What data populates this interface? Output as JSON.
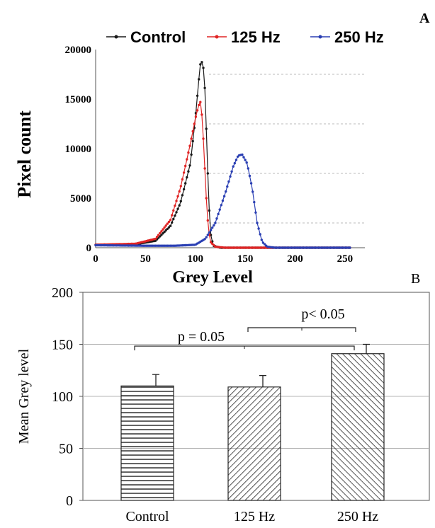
{
  "chart_data": [
    {
      "panel": "A",
      "type": "line",
      "xlabel": "Grey Level",
      "ylabel": "Pixel count",
      "xlim": [
        0,
        270
      ],
      "ylim": [
        0,
        20000
      ],
      "x_ticks": [
        0,
        50,
        100,
        150,
        200,
        250
      ],
      "y_ticks": [
        0,
        5000,
        10000,
        15000,
        20000
      ],
      "legend_position": "top",
      "grid": "dashed horizontal",
      "series": [
        {
          "name": "Control",
          "color": "#1a1a1a",
          "points": [
            [
              0,
              300
            ],
            [
              40,
              350
            ],
            [
              60,
              700
            ],
            [
              75,
              2200
            ],
            [
              85,
              4500
            ],
            [
              95,
              8500
            ],
            [
              100,
              13000
            ],
            [
              103,
              16500
            ],
            [
              105,
              18500
            ],
            [
              107,
              18800
            ],
            [
              109,
              17500
            ],
            [
              111,
              12000
            ],
            [
              113,
              6000
            ],
            [
              115,
              1500
            ],
            [
              118,
              200
            ],
            [
              125,
              0
            ],
            [
              255,
              0
            ]
          ]
        },
        {
          "name": "125 Hz",
          "color": "#e02424",
          "points": [
            [
              0,
              300
            ],
            [
              40,
              400
            ],
            [
              60,
              900
            ],
            [
              75,
              2800
            ],
            [
              85,
              6000
            ],
            [
              95,
              10500
            ],
            [
              100,
              13000
            ],
            [
              103,
              14300
            ],
            [
              105,
              14700
            ],
            [
              107,
              13000
            ],
            [
              109,
              9000
            ],
            [
              111,
              5000
            ],
            [
              113,
              2000
            ],
            [
              115,
              600
            ],
            [
              120,
              100
            ],
            [
              130,
              0
            ],
            [
              255,
              0
            ]
          ]
        },
        {
          "name": "250 Hz",
          "color": "#2a3fb3",
          "points": [
            [
              0,
              250
            ],
            [
              50,
              200
            ],
            [
              80,
              200
            ],
            [
              100,
              300
            ],
            [
              110,
              900
            ],
            [
              120,
              2500
            ],
            [
              130,
              5500
            ],
            [
              138,
              8200
            ],
            [
              143,
              9300
            ],
            [
              147,
              9400
            ],
            [
              152,
              8500
            ],
            [
              157,
              6000
            ],
            [
              162,
              2500
            ],
            [
              167,
              600
            ],
            [
              172,
              100
            ],
            [
              180,
              0
            ],
            [
              255,
              0
            ]
          ]
        }
      ]
    },
    {
      "panel": "B",
      "type": "bar",
      "categories": [
        "Control",
        "125 Hz",
        "250 Hz"
      ],
      "values": [
        110,
        109,
        141
      ],
      "errors": [
        11,
        11,
        9
      ],
      "ylabel": "Mean Grey level",
      "ylim": [
        0,
        200
      ],
      "y_ticks": [
        0,
        50,
        100,
        150,
        200
      ],
      "grid": "horizontal",
      "annotations": [
        "p = 0.05",
        "p< 0.05"
      ]
    }
  ],
  "panel_labels": {
    "a": "A",
    "b": "B"
  }
}
